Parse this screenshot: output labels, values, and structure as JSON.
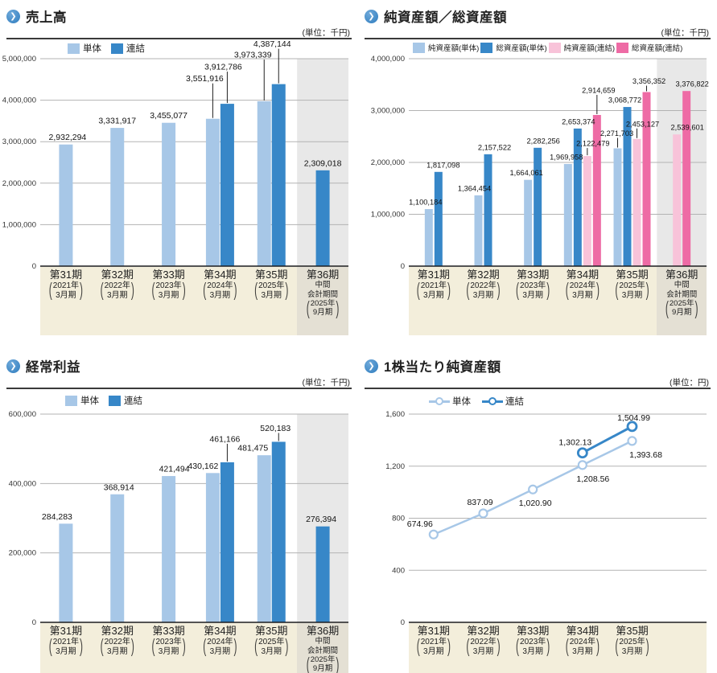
{
  "icons": {
    "bullet": "❯"
  },
  "decor": {
    "open_paren": "(",
    "close_paren": ")"
  },
  "colors": {
    "light_blue": "#a7c7e7",
    "dark_blue": "#3787c8",
    "light_pink": "#f8c3d9",
    "dark_pink": "#ee6ba5",
    "beige": "#f3eedb",
    "gray_label": "#e4e0d4",
    "gray_col": "#e8e8e8",
    "grid_line": "#b3b3b3",
    "axis_line": "#1a1a1a",
    "text": "#222222"
  },
  "chart_data": [
    {
      "id": "sales",
      "title": "売上高",
      "unit": "(単位：千円)",
      "type": "bar",
      "ylim": [
        0,
        5000000
      ],
      "y_step": 1000000,
      "grid": true,
      "legend_position": "top-left",
      "value_format": "int",
      "categories": [
        {
          "period": "第31期",
          "year": "2021年",
          "month": "3月期"
        },
        {
          "period": "第32期",
          "year": "2022年",
          "month": "3月期"
        },
        {
          "period": "第33期",
          "year": "2023年",
          "month": "3月期"
        },
        {
          "period": "第34期",
          "year": "2024年",
          "month": "3月期"
        },
        {
          "period": "第35期",
          "year": "2025年",
          "month": "3月期"
        },
        {
          "period": "第36期",
          "mid1": "中間",
          "mid2": "会計期間",
          "year": "2025年",
          "month": "9月期",
          "highlight": true
        }
      ],
      "series": [
        {
          "name": "単体",
          "color": "light_blue",
          "values": [
            2932294,
            3331917,
            3455077,
            3551916,
            3973339,
            null
          ]
        },
        {
          "name": "連結",
          "color": "dark_blue",
          "values": [
            null,
            null,
            null,
            3912786,
            4387144,
            2309018
          ]
        }
      ]
    },
    {
      "id": "assets",
      "title": "純資産額／総資産額",
      "unit": "(単位：千円)",
      "type": "bar",
      "ylim": [
        0,
        4000000
      ],
      "y_step": 1000000,
      "grid": true,
      "legend_position": "top-left",
      "value_format": "int",
      "categories": [
        {
          "period": "第31期",
          "year": "2021年",
          "month": "3月期"
        },
        {
          "period": "第32期",
          "year": "2022年",
          "month": "3月期"
        },
        {
          "period": "第33期",
          "year": "2023年",
          "month": "3月期"
        },
        {
          "period": "第34期",
          "year": "2024年",
          "month": "3月期"
        },
        {
          "period": "第35期",
          "year": "2025年",
          "month": "3月期"
        },
        {
          "period": "第36期",
          "mid1": "中間",
          "mid2": "会計期間",
          "year": "2025年",
          "month": "9月期",
          "highlight": true
        }
      ],
      "series": [
        {
          "name": "純資産額(単体)",
          "color": "light_blue",
          "values": [
            1100184,
            1364454,
            1664061,
            1969958,
            2271703,
            null
          ]
        },
        {
          "name": "総資産額(単体)",
          "color": "dark_blue",
          "values": [
            1817098,
            2157522,
            2282256,
            2653374,
            3068772,
            null
          ]
        },
        {
          "name": "純資産額(連結)",
          "color": "light_pink",
          "values": [
            null,
            null,
            null,
            2122479,
            2453127,
            2539601
          ]
        },
        {
          "name": "総資産額(連結)",
          "color": "dark_pink",
          "values": [
            null,
            null,
            null,
            2914659,
            3356352,
            3376822
          ]
        }
      ]
    },
    {
      "id": "profit",
      "title": "経常利益",
      "unit": "(単位：千円)",
      "type": "bar",
      "ylim": [
        0,
        600000
      ],
      "y_step": 200000,
      "grid": true,
      "legend_position": "top-left",
      "value_format": "int",
      "categories": [
        {
          "period": "第31期",
          "year": "2021年",
          "month": "3月期"
        },
        {
          "period": "第32期",
          "year": "2022年",
          "month": "3月期"
        },
        {
          "period": "第33期",
          "year": "2023年",
          "month": "3月期"
        },
        {
          "period": "第34期",
          "year": "2024年",
          "month": "3月期"
        },
        {
          "period": "第35期",
          "year": "2025年",
          "month": "3月期"
        },
        {
          "period": "第36期",
          "mid1": "中間",
          "mid2": "会計期間",
          "year": "2025年",
          "month": "9月期",
          "highlight": true
        }
      ],
      "series": [
        {
          "name": "単体",
          "color": "light_blue",
          "values": [
            284283,
            368914,
            421494,
            430162,
            481475,
            null
          ]
        },
        {
          "name": "連結",
          "color": "dark_blue",
          "values": [
            null,
            null,
            null,
            461166,
            520183,
            276394
          ]
        }
      ]
    },
    {
      "id": "bps",
      "title": "1株当たり純資産額",
      "unit": "(単位：円)",
      "type": "line",
      "ylim": [
        0,
        1600
      ],
      "y_step": 400,
      "grid": true,
      "legend_position": "top-left",
      "value_format": "2dp",
      "categories": [
        {
          "period": "第31期",
          "year": "2021年",
          "month": "3月期"
        },
        {
          "period": "第32期",
          "year": "2022年",
          "month": "3月期"
        },
        {
          "period": "第33期",
          "year": "2023年",
          "month": "3月期"
        },
        {
          "period": "第34期",
          "year": "2024年",
          "month": "3月期"
        },
        {
          "period": "第35期",
          "year": "2025年",
          "month": "3月期"
        }
      ],
      "series": [
        {
          "name": "単体",
          "color": "light_blue",
          "values": [
            674.96,
            837.09,
            1020.9,
            1208.56,
            1393.68
          ]
        },
        {
          "name": "連結",
          "color": "dark_blue",
          "values": [
            null,
            null,
            null,
            1302.13,
            1504.99
          ]
        }
      ]
    }
  ]
}
